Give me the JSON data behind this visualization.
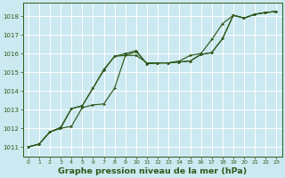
{
  "title": "Graphe pression niveau de la mer (hPa)",
  "bg_color": "#cce8f0",
  "grid_color": "#ffffff",
  "line_color": "#2d5a1b",
  "xlim": [
    -0.5,
    23.5
  ],
  "ylim": [
    1010.5,
    1018.7
  ],
  "yticks": [
    1011,
    1012,
    1013,
    1014,
    1015,
    1016,
    1017,
    1018
  ],
  "xticks": [
    0,
    1,
    2,
    3,
    4,
    5,
    6,
    7,
    8,
    9,
    10,
    11,
    12,
    13,
    14,
    15,
    16,
    17,
    18,
    19,
    20,
    21,
    22,
    23
  ],
  "series1_x": [
    0,
    1,
    2,
    3,
    4,
    5,
    6,
    7,
    8,
    9,
    10,
    11,
    12,
    13,
    14,
    15,
    16,
    17,
    18,
    19,
    20,
    21,
    22,
    23
  ],
  "series1_y": [
    1011.0,
    1011.15,
    1011.8,
    1012.0,
    1012.1,
    1013.1,
    1013.25,
    1013.3,
    1014.15,
    1015.9,
    1015.9,
    1015.5,
    1015.5,
    1015.5,
    1015.6,
    1015.9,
    1016.0,
    1016.75,
    1017.6,
    1018.05,
    1017.9,
    1018.1,
    1018.2,
    1018.25
  ],
  "series2_x": [
    0,
    1,
    2,
    3,
    4,
    5,
    6,
    7,
    8,
    9,
    10,
    11,
    12,
    13,
    14,
    15,
    16,
    17,
    18,
    19,
    20,
    21,
    22,
    23
  ],
  "series2_y": [
    1011.0,
    1011.15,
    1011.8,
    1012.0,
    1013.05,
    1013.2,
    1014.15,
    1015.15,
    1015.85,
    1016.0,
    1016.15,
    1015.45,
    1015.5,
    1015.5,
    1015.55,
    1015.6,
    1015.95,
    1016.05,
    1016.8,
    1018.05,
    1017.9,
    1018.1,
    1018.2,
    1018.25
  ],
  "series3_x": [
    0,
    1,
    2,
    3,
    4,
    5,
    6,
    7,
    8,
    9,
    10,
    11,
    12,
    13,
    14,
    15,
    16,
    17,
    18,
    19,
    20,
    21,
    22,
    23
  ],
  "series3_y": [
    1011.0,
    1011.15,
    1011.8,
    1012.05,
    1013.05,
    1013.2,
    1014.15,
    1015.1,
    1015.85,
    1015.9,
    1016.1,
    1015.45,
    1015.5,
    1015.5,
    1015.55,
    1015.6,
    1015.95,
    1016.05,
    1016.8,
    1018.05,
    1017.9,
    1018.1,
    1018.2,
    1018.25
  ],
  "ylabel_fontsize": 5.2,
  "xlabel_fontsize": 5.2,
  "title_fontsize": 6.8
}
